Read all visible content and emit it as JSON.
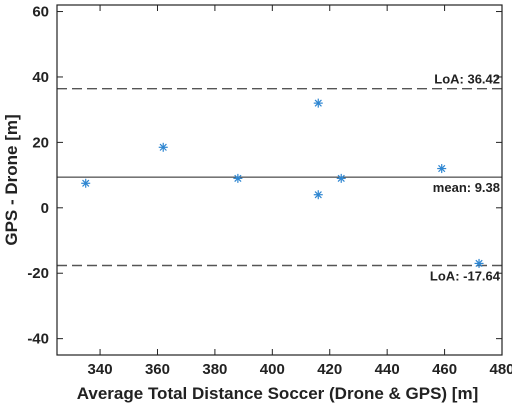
{
  "chart_data": {
    "type": "scatter",
    "xlabel": "Average Total Distance Soccer (Drone & GPS) [m]",
    "ylabel": "GPS - Drone [m]",
    "xlim": [
      325,
      480
    ],
    "ylim": [
      -45,
      62
    ],
    "xticks": [
      340,
      360,
      380,
      400,
      420,
      440,
      460,
      480
    ],
    "yticks": [
      -40,
      -20,
      0,
      20,
      40,
      60
    ],
    "grid": false,
    "marker": "asterisk",
    "colors": {
      "points": "#2e86d1",
      "mean_line": "#222222",
      "loa_line": "#555555",
      "axes": "#222222"
    },
    "series": [
      {
        "x": [
          335,
          362,
          388,
          416,
          416,
          424,
          459,
          472
        ],
        "y": [
          7.5,
          18.5,
          9.0,
          32.0,
          4.0,
          9.0,
          12.0,
          -17.0
        ]
      }
    ],
    "reference_lines": [
      {
        "kind": "loa_upper",
        "y": 36.42,
        "style": "dashed",
        "label": "LoA: 36.42"
      },
      {
        "kind": "mean",
        "y": 9.38,
        "style": "solid",
        "label": "mean: 9.38"
      },
      {
        "kind": "loa_lower",
        "y": -17.64,
        "style": "dashed",
        "label": "LoA: -17.64"
      }
    ]
  }
}
